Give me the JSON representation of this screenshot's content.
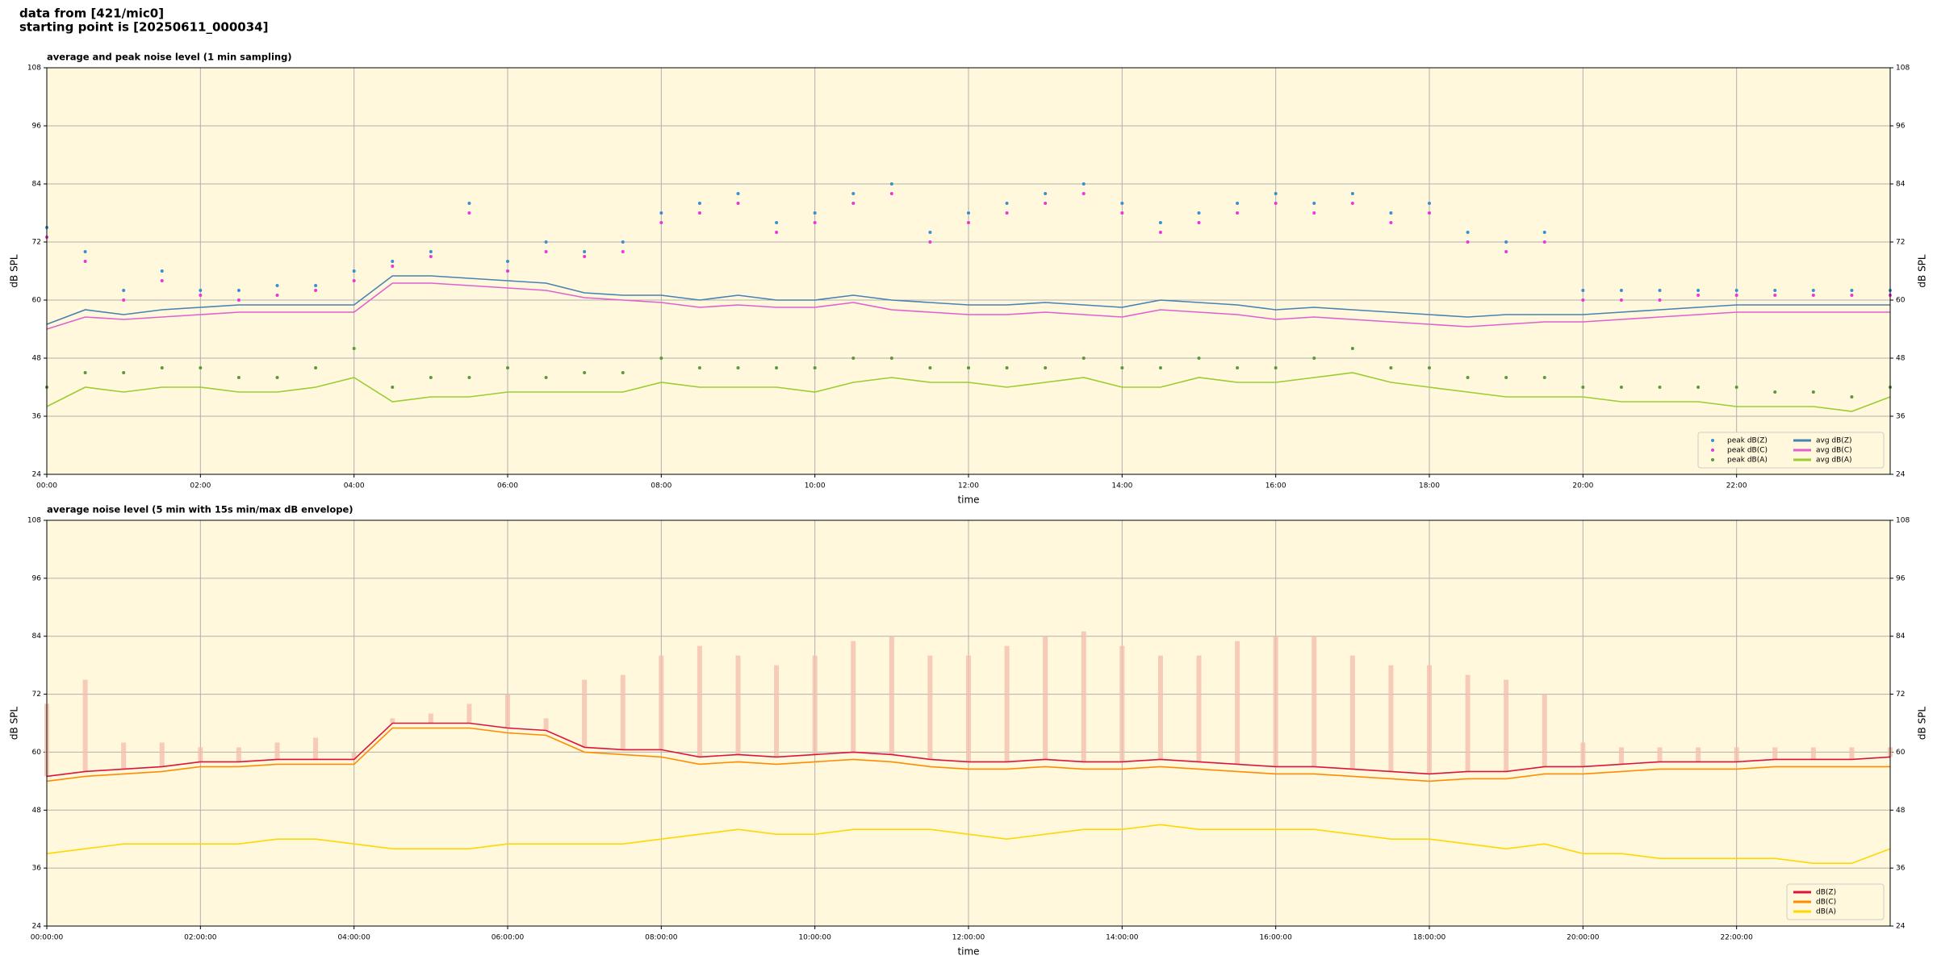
{
  "header": {
    "line1": "data from [421/mic0]",
    "line2": "starting point is [20250611_000034]"
  },
  "chart_data": [
    {
      "type": "line",
      "title": "average and peak noise level (1 min sampling)",
      "xlabel": "time",
      "ylabel": "dB SPL",
      "x": [
        0,
        0.5,
        1,
        1.5,
        2,
        2.5,
        3,
        3.5,
        4,
        4.5,
        5,
        5.5,
        6,
        6.5,
        7,
        7.5,
        8,
        8.5,
        9,
        9.5,
        10,
        10.5,
        11,
        11.5,
        12,
        12.5,
        13,
        13.5,
        14,
        14.5,
        15,
        15.5,
        16,
        16.5,
        17,
        17.5,
        18,
        18.5,
        19,
        19.5,
        20,
        20.5,
        21,
        21.5,
        22,
        22.5,
        23,
        23.5,
        24
      ],
      "xlim": [
        0,
        24
      ],
      "ylim": [
        24,
        108
      ],
      "xticks": [
        {
          "value": 0,
          "label": "00:00"
        },
        {
          "value": 2,
          "label": "02:00"
        },
        {
          "value": 4,
          "label": "04:00"
        },
        {
          "value": 6,
          "label": "06:00"
        },
        {
          "value": 8,
          "label": "08:00"
        },
        {
          "value": 10,
          "label": "10:00"
        },
        {
          "value": 12,
          "label": "12:00"
        },
        {
          "value": 14,
          "label": "14:00"
        },
        {
          "value": 16,
          "label": "16:00"
        },
        {
          "value": 18,
          "label": "18:00"
        },
        {
          "value": 20,
          "label": "20:00"
        },
        {
          "value": 22,
          "label": "22:00"
        }
      ],
      "yticks": [
        24,
        36,
        48,
        60,
        72,
        84,
        96,
        108
      ],
      "grid": true,
      "legend": "lower right",
      "background": "#fff8dc",
      "series": [
        {
          "name": "peak dB(Z)",
          "mode": "markers",
          "color": "#3a8fd0",
          "values": [
            75,
            70,
            62,
            66,
            62,
            62,
            63,
            63,
            66,
            68,
            70,
            80,
            68,
            72,
            70,
            72,
            78,
            80,
            82,
            76,
            78,
            82,
            84,
            74,
            78,
            80,
            82,
            84,
            80,
            76,
            78,
            80,
            82,
            80,
            82,
            78,
            80,
            74,
            72,
            74,
            62,
            62,
            62,
            62,
            62,
            62,
            62,
            62,
            62
          ]
        },
        {
          "name": "peak dB(C)",
          "mode": "markers",
          "color": "#e838d8",
          "values": [
            73,
            68,
            60,
            64,
            61,
            60,
            61,
            62,
            64,
            67,
            69,
            78,
            66,
            70,
            69,
            70,
            76,
            78,
            80,
            74,
            76,
            80,
            82,
            72,
            76,
            78,
            80,
            82,
            78,
            74,
            76,
            78,
            80,
            78,
            80,
            76,
            78,
            72,
            70,
            72,
            60,
            60,
            60,
            61,
            61,
            61,
            61,
            61,
            61
          ]
        },
        {
          "name": "peak dB(A)",
          "mode": "markers",
          "color": "#5a9a3a",
          "values": [
            42,
            45,
            45,
            46,
            46,
            44,
            44,
            46,
            50,
            42,
            44,
            44,
            46,
            44,
            45,
            45,
            48,
            46,
            46,
            46,
            46,
            48,
            48,
            46,
            46,
            46,
            46,
            48,
            46,
            46,
            48,
            46,
            46,
            48,
            50,
            46,
            46,
            44,
            44,
            44,
            42,
            42,
            42,
            42,
            42,
            41,
            41,
            40,
            42
          ]
        },
        {
          "name": "avg dB(Z)",
          "mode": "line",
          "color": "#4682b4",
          "values": [
            55,
            58,
            57,
            58,
            58.5,
            59,
            59,
            59,
            59,
            65,
            65,
            64.5,
            64,
            63.5,
            61.5,
            61,
            61,
            60,
            61,
            60,
            60,
            61,
            60,
            59.5,
            59,
            59,
            59.5,
            59,
            58.5,
            60,
            59.5,
            59,
            58,
            58.5,
            58,
            57.5,
            57,
            56.5,
            57,
            57,
            57,
            57.5,
            58,
            58.5,
            59,
            59,
            59,
            59,
            59
          ]
        },
        {
          "name": "avg dB(C)",
          "mode": "line",
          "color": "#e060d0",
          "values": [
            54,
            56.5,
            56,
            56.5,
            57,
            57.5,
            57.5,
            57.5,
            57.5,
            63.5,
            63.5,
            63,
            62.5,
            62,
            60.5,
            60,
            59.5,
            58.5,
            59,
            58.5,
            58.5,
            59.5,
            58,
            57.5,
            57,
            57,
            57.5,
            57,
            56.5,
            58,
            57.5,
            57,
            56,
            56.5,
            56,
            55.5,
            55,
            54.5,
            55,
            55.5,
            55.5,
            56,
            56.5,
            57,
            57.5,
            57.5,
            57.5,
            57.5,
            57.5
          ]
        },
        {
          "name": "avg dB(A)",
          "mode": "line",
          "color": "#9acd32",
          "values": [
            38,
            42,
            41,
            42,
            42,
            41,
            41,
            42,
            44,
            39,
            40,
            40,
            41,
            41,
            41,
            41,
            43,
            42,
            42,
            42,
            41,
            43,
            44,
            43,
            43,
            42,
            43,
            44,
            42,
            42,
            44,
            43,
            43,
            44,
            45,
            43,
            42,
            41,
            40,
            40,
            40,
            39,
            39,
            39,
            38,
            38,
            38,
            37,
            40
          ]
        }
      ]
    },
    {
      "type": "line",
      "title": "average noise level (5 min with 15s min/max dB envelope)",
      "xlabel": "time",
      "ylabel": "dB SPL",
      "x": [
        0,
        0.5,
        1,
        1.5,
        2,
        2.5,
        3,
        3.5,
        4,
        4.5,
        5,
        5.5,
        6,
        6.5,
        7,
        7.5,
        8,
        8.5,
        9,
        9.5,
        10,
        10.5,
        11,
        11.5,
        12,
        12.5,
        13,
        13.5,
        14,
        14.5,
        15,
        15.5,
        16,
        16.5,
        17,
        17.5,
        18,
        18.5,
        19,
        19.5,
        20,
        20.5,
        21,
        21.5,
        22,
        22.5,
        23,
        23.5,
        24
      ],
      "xlim": [
        0,
        24
      ],
      "ylim": [
        24,
        108
      ],
      "xticks": [
        {
          "value": 0,
          "label": "00:00:00"
        },
        {
          "value": 2,
          "label": "02:00:00"
        },
        {
          "value": 4,
          "label": "04:00:00"
        },
        {
          "value": 6,
          "label": "06:00:00"
        },
        {
          "value": 8,
          "label": "08:00:00"
        },
        {
          "value": 10,
          "label": "10:00:00"
        },
        {
          "value": 12,
          "label": "12:00:00"
        },
        {
          "value": 14,
          "label": "14:00:00"
        },
        {
          "value": 16,
          "label": "16:00:00"
        },
        {
          "value": 18,
          "label": "18:00:00"
        },
        {
          "value": 20,
          "label": "20:00:00"
        },
        {
          "value": 22,
          "label": "22:00:00"
        }
      ],
      "yticks": [
        24,
        36,
        48,
        60,
        72,
        84,
        96,
        108
      ],
      "grid": true,
      "legend": "lower right",
      "background": "#fff8dc",
      "envelope": {
        "color": "#f4c0b0",
        "max": [
          70,
          75,
          62,
          62,
          61,
          61,
          62,
          63,
          60,
          67,
          68,
          70,
          72,
          67,
          75,
          76,
          80,
          82,
          80,
          78,
          80,
          83,
          84,
          80,
          80,
          82,
          84,
          85,
          82,
          80,
          80,
          83,
          84,
          84,
          80,
          78,
          78,
          76,
          75,
          72,
          62,
          61,
          61,
          61,
          61,
          61,
          61,
          61,
          61
        ]
      },
      "series": [
        {
          "name": "dB(Z)",
          "mode": "line",
          "color": "#dc143c",
          "values": [
            55,
            56,
            56.5,
            57,
            58,
            58,
            58.5,
            58.5,
            58.5,
            66,
            66,
            66,
            65,
            64.5,
            61,
            60.5,
            60.5,
            59,
            59.5,
            59,
            59.5,
            60,
            59.5,
            58.5,
            58,
            58,
            58.5,
            58,
            58,
            58.5,
            58,
            57.5,
            57,
            57,
            56.5,
            56,
            55.5,
            56,
            56,
            57,
            57,
            57.5,
            58,
            58,
            58,
            58.5,
            58.5,
            58.5,
            59
          ]
        },
        {
          "name": "dB(C)",
          "mode": "line",
          "color": "#ff8c00",
          "values": [
            54,
            55,
            55.5,
            56,
            57,
            57,
            57.5,
            57.5,
            57.5,
            65,
            65,
            65,
            64,
            63.5,
            60,
            59.5,
            59,
            57.5,
            58,
            57.5,
            58,
            58.5,
            58,
            57,
            56.5,
            56.5,
            57,
            56.5,
            56.5,
            57,
            56.5,
            56,
            55.5,
            55.5,
            55,
            54.5,
            54,
            54.5,
            54.5,
            55.5,
            55.5,
            56,
            56.5,
            56.5,
            56.5,
            57,
            57,
            57,
            57
          ]
        },
        {
          "name": "dB(A)",
          "mode": "line",
          "color": "#ffd700",
          "values": [
            39,
            40,
            41,
            41,
            41,
            41,
            42,
            42,
            41,
            40,
            40,
            40,
            41,
            41,
            41,
            41,
            42,
            43,
            44,
            43,
            43,
            44,
            44,
            44,
            43,
            42,
            43,
            44,
            44,
            45,
            44,
            44,
            44,
            44,
            43,
            42,
            42,
            41,
            40,
            41,
            39,
            39,
            38,
            38,
            38,
            38,
            37,
            37,
            40
          ]
        }
      ]
    }
  ]
}
